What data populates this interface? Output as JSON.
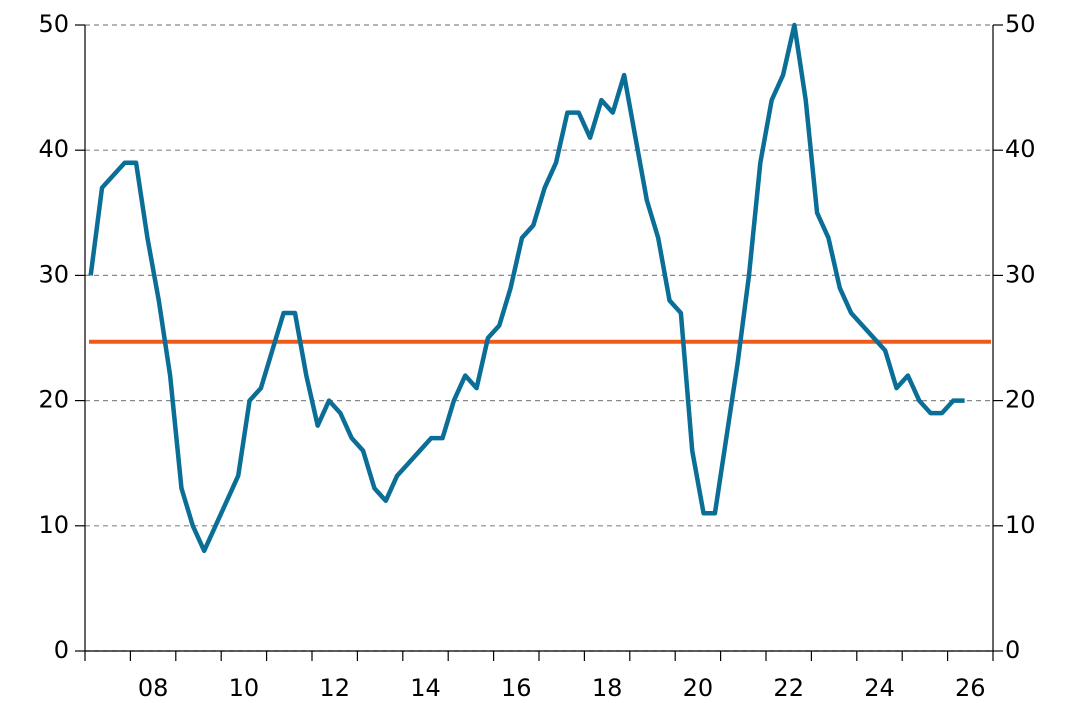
{
  "chart_data": {
    "type": "line",
    "x": [
      2007.125,
      2007.375,
      2007.625,
      2007.875,
      2008.125,
      2008.375,
      2008.625,
      2008.875,
      2009.125,
      2009.375,
      2009.625,
      2009.875,
      2010.125,
      2010.375,
      2010.625,
      2010.875,
      2011.125,
      2011.375,
      2011.625,
      2011.875,
      2012.125,
      2012.375,
      2012.625,
      2012.875,
      2013.125,
      2013.375,
      2013.625,
      2013.875,
      2014.125,
      2014.375,
      2014.625,
      2014.875,
      2015.125,
      2015.375,
      2015.625,
      2015.875,
      2016.125,
      2016.375,
      2016.625,
      2016.875,
      2017.125,
      2017.375,
      2017.625,
      2017.875,
      2018.125,
      2018.375,
      2018.625,
      2018.875,
      2019.125,
      2019.375,
      2019.625,
      2019.875,
      2020.125,
      2020.375,
      2020.625,
      2020.875,
      2021.125,
      2021.375,
      2021.625,
      2021.875,
      2022.125,
      2022.375,
      2022.625,
      2022.875,
      2023.125,
      2023.375,
      2023.625,
      2023.875,
      2024.125,
      2024.375,
      2024.625,
      2024.875,
      2025.125,
      2025.375,
      2025.625,
      2025.875,
      2026.125,
      2026.375
    ],
    "series": [
      {
        "color": "#0a6e96",
        "values": [
          30,
          37,
          38,
          39,
          39,
          33,
          28,
          22,
          13,
          10,
          8,
          10,
          12,
          14,
          20,
          21,
          24,
          27,
          27,
          22,
          18,
          20,
          19,
          17,
          16,
          13,
          12,
          14,
          15,
          16,
          17,
          17,
          20,
          22,
          21,
          25,
          26,
          29,
          33,
          34,
          37,
          39,
          43,
          43,
          41,
          44,
          43,
          46,
          41,
          36,
          33,
          28,
          27,
          16,
          11,
          11,
          17,
          23,
          30,
          39,
          44,
          46,
          50,
          44,
          35,
          33,
          29,
          27,
          26,
          25,
          24,
          21,
          22,
          20,
          19,
          19,
          20,
          20
        ]
      }
    ],
    "reference_line": {
      "value": 24.7,
      "color": "#f05a1a"
    },
    "xlim": [
      2007,
      2027
    ],
    "xtick_marks": [
      2007,
      2008,
      2009,
      2010,
      2011,
      2012,
      2013,
      2014,
      2015,
      2016,
      2017,
      2018,
      2019,
      2020,
      2021,
      2022,
      2023,
      2024,
      2025,
      2026,
      2027
    ],
    "xticks": [
      {
        "value": 2008,
        "label": "08"
      },
      {
        "value": 2010,
        "label": "10"
      },
      {
        "value": 2012,
        "label": "12"
      },
      {
        "value": 2014,
        "label": "14"
      },
      {
        "value": 2016,
        "label": "16"
      },
      {
        "value": 2018,
        "label": "18"
      },
      {
        "value": 2020,
        "label": "20"
      },
      {
        "value": 2022,
        "label": "22"
      },
      {
        "value": 2024,
        "label": "24"
      },
      {
        "value": 2026,
        "label": "26"
      }
    ],
    "ylim": [
      0,
      50
    ],
    "yticks": [
      0,
      10,
      20,
      30,
      40,
      50
    ],
    "y2lim": [
      0,
      50
    ],
    "y2ticks": [
      0,
      10,
      20,
      30,
      40,
      50
    ],
    "grid": true
  }
}
